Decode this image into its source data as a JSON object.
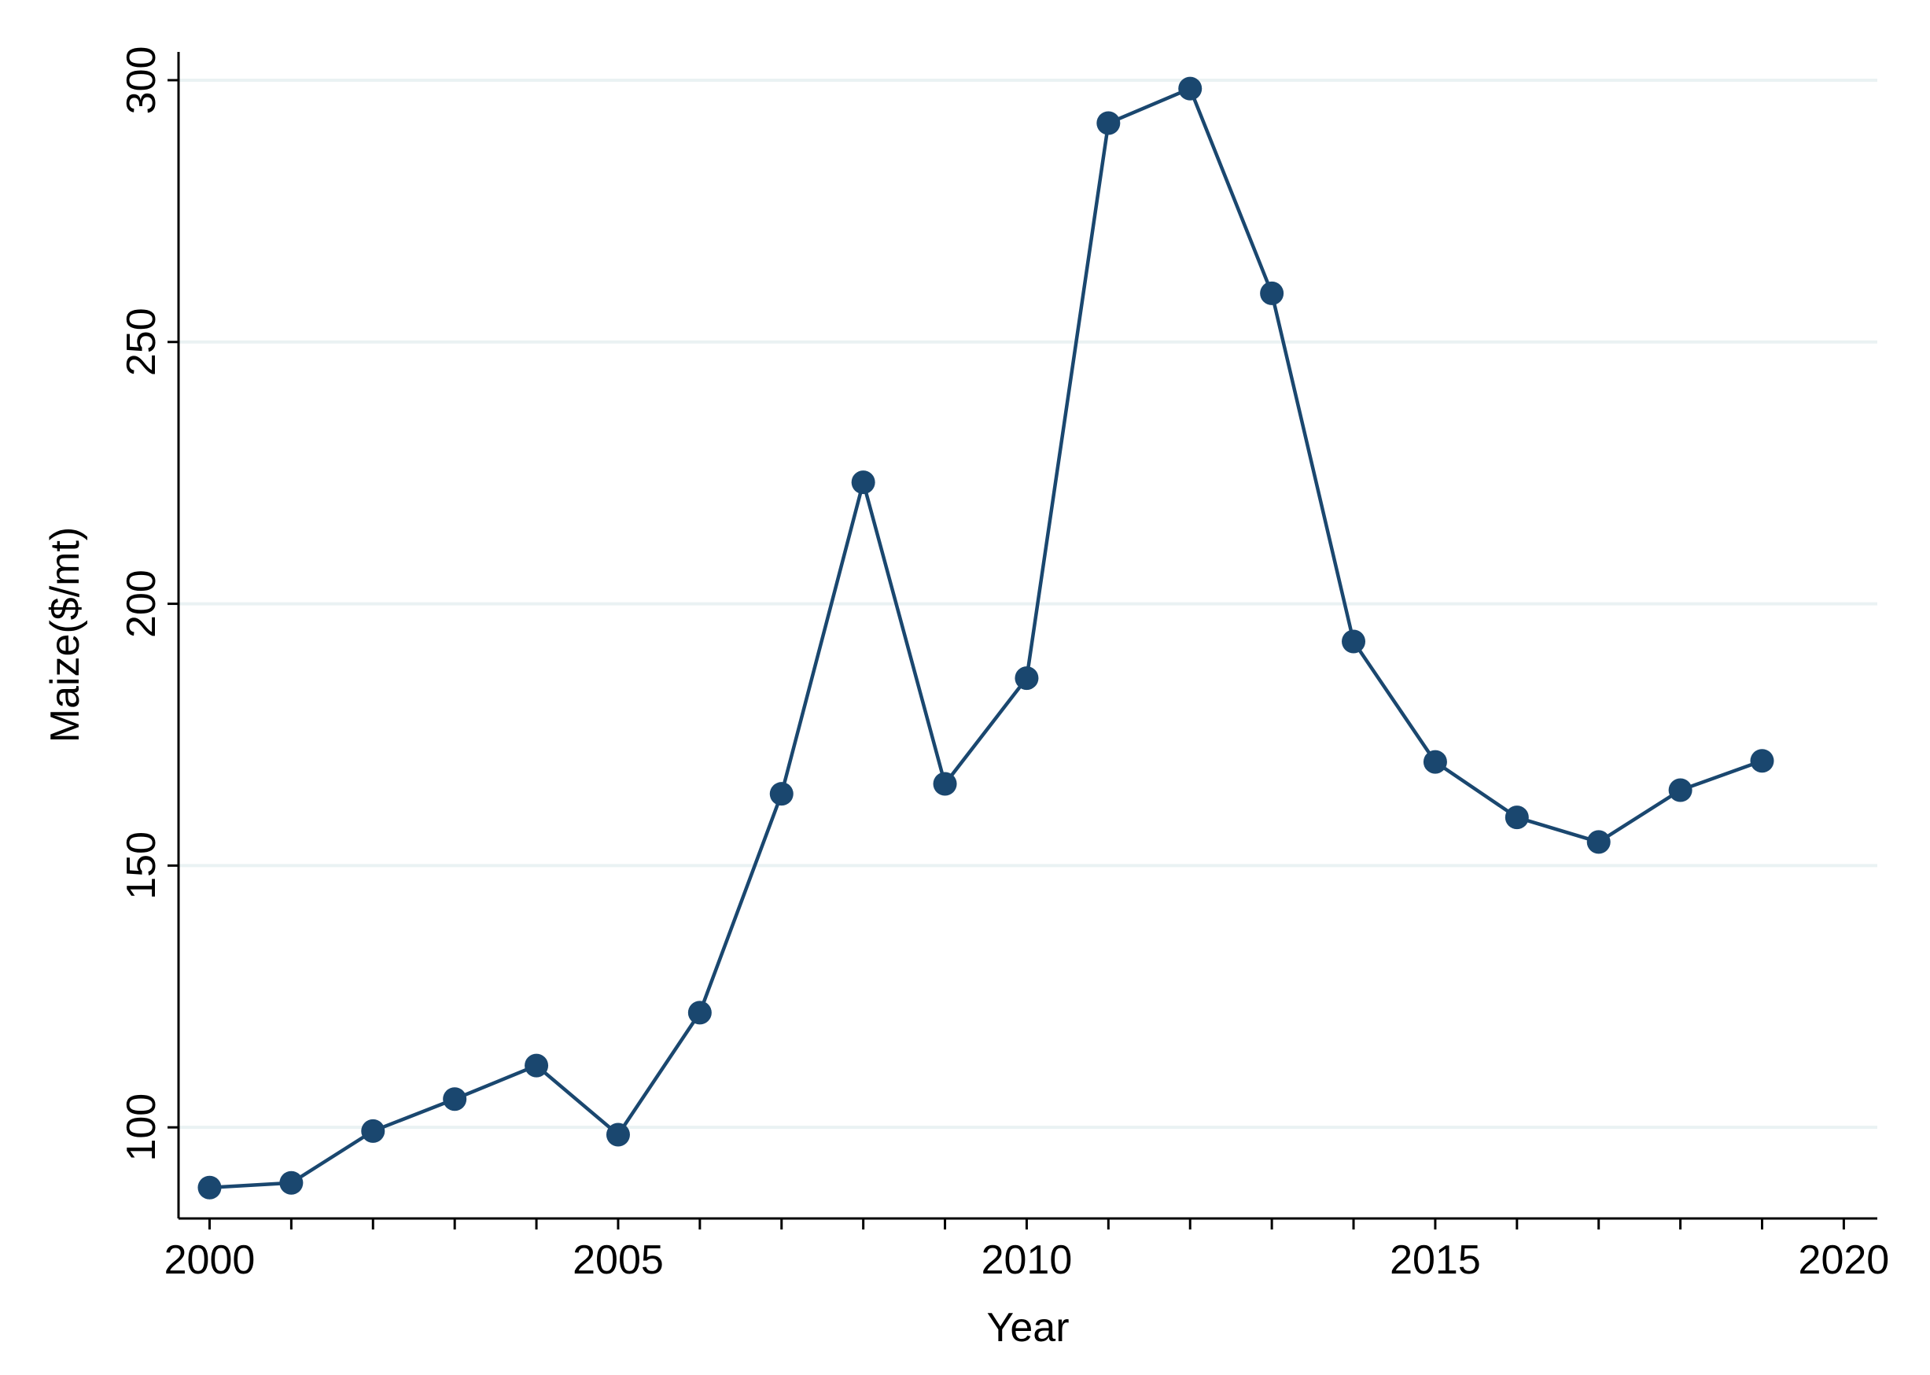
{
  "chart_data": {
    "type": "line",
    "x_label": "Year",
    "y_label": "Maize($/mt)",
    "x": [
      2000,
      2001,
      2002,
      2003,
      2004,
      2005,
      2006,
      2007,
      2008,
      2009,
      2010,
      2011,
      2012,
      2013,
      2014,
      2015,
      2016,
      2017,
      2018,
      2019
    ],
    "series": [
      {
        "name": "Maize",
        "color": "#1a476f",
        "values": [
          88.5,
          89.4,
          99.3,
          105.4,
          111.8,
          98.6,
          121.9,
          163.7,
          223.2,
          165.6,
          185.8,
          291.8,
          298.4,
          259.3,
          192.8,
          169.8,
          159.2,
          154.5,
          164.4,
          170.0
        ]
      }
    ],
    "xlim": [
      1999.62,
      2020.41
    ],
    "ylim": [
      82.6,
      305.4
    ],
    "xticks": [
      2000,
      2005,
      2010,
      2015,
      2020
    ],
    "xminorticks": [
      2001,
      2002,
      2003,
      2004,
      2006,
      2007,
      2008,
      2009,
      2011,
      2012,
      2013,
      2014,
      2016,
      2017,
      2018,
      2019
    ],
    "yticks": [
      100,
      150,
      200,
      250,
      300
    ],
    "grid": true,
    "grid_color": "#eaf2f3"
  }
}
